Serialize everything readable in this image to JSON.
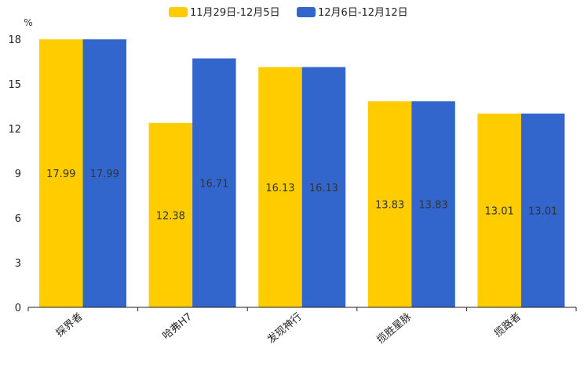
{
  "chart_data": {
    "type": "bar",
    "title": "",
    "xlabel": "",
    "ylabel": "%",
    "categories": [
      "探界者",
      "哈弗H7",
      "发现神行",
      "揽胜星脉",
      "揽路者"
    ],
    "series": [
      {
        "name": "11月29日-12月5日",
        "color": "#FFCC00",
        "values": [
          17.99,
          12.38,
          16.13,
          13.83,
          13.01
        ],
        "labels": [
          "17.99",
          "12.38",
          "16.13",
          "13.83",
          "13.01"
        ]
      },
      {
        "name": "12月6日-12月12日",
        "color": "#3366CC",
        "values": [
          17.99,
          16.71,
          16.13,
          13.83,
          13.01
        ],
        "labels": [
          "17.99",
          "16.71",
          "16.13",
          "13.83",
          "13.01"
        ]
      }
    ],
    "ylim": [
      0,
      18
    ],
    "yticks": [
      0,
      3,
      6,
      9,
      12,
      15,
      18
    ],
    "ytick_labels": [
      "0",
      "3",
      "6",
      "9",
      "12",
      "15",
      "18"
    ],
    "legend_position": "top-center",
    "grid": false
  }
}
